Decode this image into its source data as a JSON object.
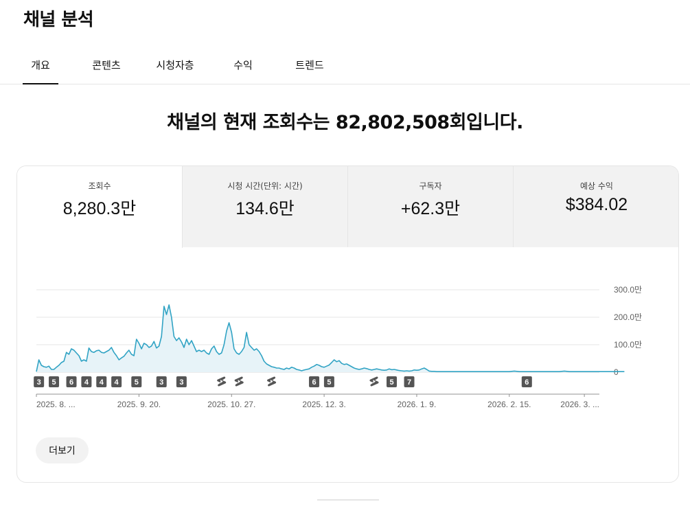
{
  "page": {
    "title": "채널 분석"
  },
  "tabs": [
    {
      "label": "개요",
      "active": true
    },
    {
      "label": "콘텐츠"
    },
    {
      "label": "시청자층"
    },
    {
      "label": "수익"
    },
    {
      "label": "트렌드"
    }
  ],
  "headline": "채널의 현재 조회수는 82,802,508회입니다.",
  "metrics": [
    {
      "label": "조회수",
      "value": "8,280.3만",
      "active": true
    },
    {
      "label": "시청 시간(단위: 시간)",
      "value": "134.6만"
    },
    {
      "label": "구독자",
      "value": "+62.3만"
    },
    {
      "label": "예상 수익",
      "value": "$384.02"
    }
  ],
  "more_button": {
    "label": "더보기"
  },
  "chart_data": {
    "type": "area",
    "color": "#30a3c4",
    "fill": "#e7f3f8",
    "y_ticks": [
      "300.0만",
      "200.0만",
      "100.0만",
      "0"
    ],
    "ylim": [
      0,
      300
    ],
    "y_unit": "만",
    "x_labels": [
      "2025. 8. ...",
      "2025. 9. 20.",
      "2025. 10. 27.",
      "2025. 12. 3.",
      "2026. 1. 9.",
      "2026. 2. 15.",
      "2026. 3. ..."
    ],
    "x_label_days": [
      0,
      41,
      78,
      115,
      152,
      189,
      219
    ],
    "x_range_days": [
      0,
      225
    ],
    "values": [
      2,
      45,
      25,
      20,
      18,
      22,
      10,
      10,
      18,
      25,
      35,
      40,
      72,
      65,
      85,
      80,
      70,
      60,
      40,
      45,
      40,
      88,
      75,
      72,
      78,
      80,
      72,
      70,
      75,
      80,
      90,
      72,
      60,
      45,
      52,
      58,
      70,
      80,
      65,
      60,
      120,
      105,
      85,
      105,
      100,
      90,
      95,
      112,
      88,
      95,
      130,
      240,
      210,
      245,
      200,
      130,
      115,
      125,
      110,
      90,
      120,
      100,
      115,
      95,
      75,
      80,
      75,
      80,
      70,
      65,
      85,
      95,
      75,
      65,
      70,
      100,
      150,
      180,
      145,
      85,
      70,
      65,
      75,
      90,
      145,
      100,
      90,
      80,
      85,
      75,
      60,
      40,
      30,
      25,
      20,
      18,
      15,
      15,
      12,
      10,
      15,
      12,
      18,
      15,
      10,
      8,
      5,
      8,
      10,
      12,
      18,
      22,
      28,
      25,
      20,
      18,
      22,
      26,
      35,
      45,
      38,
      42,
      32,
      28,
      30,
      25,
      20,
      15,
      12,
      10,
      12,
      15,
      13,
      10,
      8,
      10,
      12,
      10,
      8,
      7,
      8,
      12,
      9,
      10,
      8,
      6,
      5,
      4,
      5,
      4,
      5,
      8,
      7,
      8,
      12,
      15,
      10,
      4,
      3,
      3,
      2,
      2,
      2,
      2,
      2,
      2,
      2,
      2,
      2,
      2,
      2,
      2,
      2,
      2,
      2,
      2,
      2,
      2,
      2,
      2,
      2,
      2,
      2,
      2,
      2,
      2,
      2,
      2,
      2,
      2,
      3,
      4,
      3,
      2,
      2,
      2,
      2,
      2,
      2,
      2,
      2,
      2,
      2,
      2,
      2,
      2,
      2,
      2,
      2,
      2,
      3,
      4,
      3,
      2,
      2,
      2,
      2,
      2,
      2,
      2,
      2,
      2,
      2,
      2,
      2,
      2,
      2,
      2,
      2,
      2,
      2,
      2,
      2,
      2,
      2,
      2
    ],
    "markers": [
      {
        "day": 1,
        "label": "3"
      },
      {
        "day": 7,
        "label": "5"
      },
      {
        "day": 14,
        "label": "6"
      },
      {
        "day": 20,
        "label": "4"
      },
      {
        "day": 26,
        "label": "4"
      },
      {
        "day": 32,
        "label": "4"
      },
      {
        "day": 40,
        "label": "5"
      },
      {
        "day": 50,
        "label": "3"
      },
      {
        "day": 58,
        "label": "3"
      },
      {
        "day": 74,
        "label": "shorts"
      },
      {
        "day": 81,
        "label": "shorts"
      },
      {
        "day": 94,
        "label": "shorts"
      },
      {
        "day": 111,
        "label": "6"
      },
      {
        "day": 117,
        "label": "5"
      },
      {
        "day": 135,
        "label": "shorts"
      },
      {
        "day": 142,
        "label": "5"
      },
      {
        "day": 149,
        "label": "7"
      },
      {
        "day": 196,
        "label": "6"
      }
    ]
  }
}
